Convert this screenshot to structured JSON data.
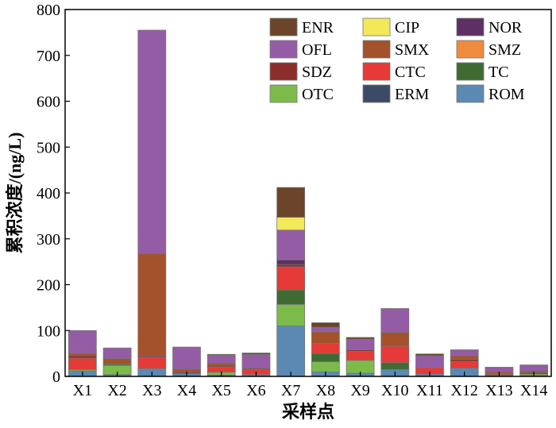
{
  "chart_data": {
    "type": "bar",
    "stacked": true,
    "categories": [
      "X1",
      "X2",
      "X3",
      "X4",
      "X5",
      "X6",
      "X7",
      "X8",
      "X9",
      "X10",
      "X11",
      "X12",
      "X13",
      "X14"
    ],
    "xlabel": "采样点",
    "ylabel": "累积浓度/(ng/L)",
    "ylim": [
      0,
      800
    ],
    "yticks": [
      0,
      100,
      200,
      300,
      400,
      500,
      600,
      700,
      800
    ],
    "grid": false,
    "legend_position": "top-right",
    "series": [
      {
        "name": "ROM",
        "color": "#5b89b3",
        "values": [
          12,
          4,
          17,
          6,
          3,
          4,
          110,
          10,
          7,
          15,
          5,
          18,
          2,
          2
        ]
      },
      {
        "name": "ERM",
        "color": "#3b4a66",
        "values": [
          0,
          0,
          0,
          0,
          0,
          0,
          0,
          0,
          0,
          0,
          0,
          0,
          0,
          0
        ]
      },
      {
        "name": "OTC",
        "color": "#7cbb4a",
        "values": [
          3,
          20,
          0,
          0,
          6,
          0,
          47,
          22,
          28,
          0,
          0,
          0,
          0,
          3
        ]
      },
      {
        "name": "TC",
        "color": "#3f6b33",
        "values": [
          0,
          3,
          0,
          0,
          0,
          0,
          32,
          18,
          0,
          15,
          0,
          0,
          0,
          0
        ]
      },
      {
        "name": "CTC",
        "color": "#e53a37",
        "values": [
          25,
          0,
          25,
          0,
          12,
          12,
          50,
          22,
          20,
          36,
          14,
          15,
          2,
          0
        ]
      },
      {
        "name": "SMZ",
        "color": "#ee8b3e",
        "values": [
          0,
          0,
          0,
          0,
          0,
          0,
          0,
          0,
          0,
          0,
          0,
          0,
          0,
          0
        ]
      },
      {
        "name": "SDZ",
        "color": "#8b2d2a",
        "values": [
          5,
          0,
          3,
          3,
          3,
          2,
          5,
          0,
          3,
          0,
          0,
          4,
          2,
          3
        ]
      },
      {
        "name": "SMX",
        "color": "#a3522b",
        "values": [
          5,
          12,
          223,
          7,
          5,
          0,
          0,
          25,
          0,
          30,
          0,
          8,
          4,
          4
        ]
      },
      {
        "name": "NOR",
        "color": "#5e2f63",
        "values": [
          0,
          0,
          0,
          0,
          0,
          0,
          10,
          0,
          0,
          0,
          0,
          0,
          0,
          0
        ]
      },
      {
        "name": "OFL",
        "color": "#955ca6",
        "values": [
          50,
          23,
          487,
          48,
          17,
          30,
          65,
          10,
          23,
          52,
          26,
          13,
          10,
          13
        ]
      },
      {
        "name": "CIP",
        "color": "#f2e85a",
        "values": [
          0,
          0,
          0,
          0,
          0,
          0,
          28,
          0,
          0,
          0,
          0,
          0,
          0,
          0
        ]
      },
      {
        "name": "ENR",
        "color": "#6b4429",
        "values": [
          0,
          0,
          0,
          0,
          2,
          3,
          65,
          10,
          4,
          0,
          4,
          0,
          0,
          0
        ]
      }
    ],
    "legend_order": [
      "ENR",
      "CIP",
      "NOR",
      "OFL",
      "SMX",
      "SMZ",
      "SDZ",
      "CTC",
      "TC",
      "OTC",
      "ERM",
      "ROM"
    ]
  }
}
